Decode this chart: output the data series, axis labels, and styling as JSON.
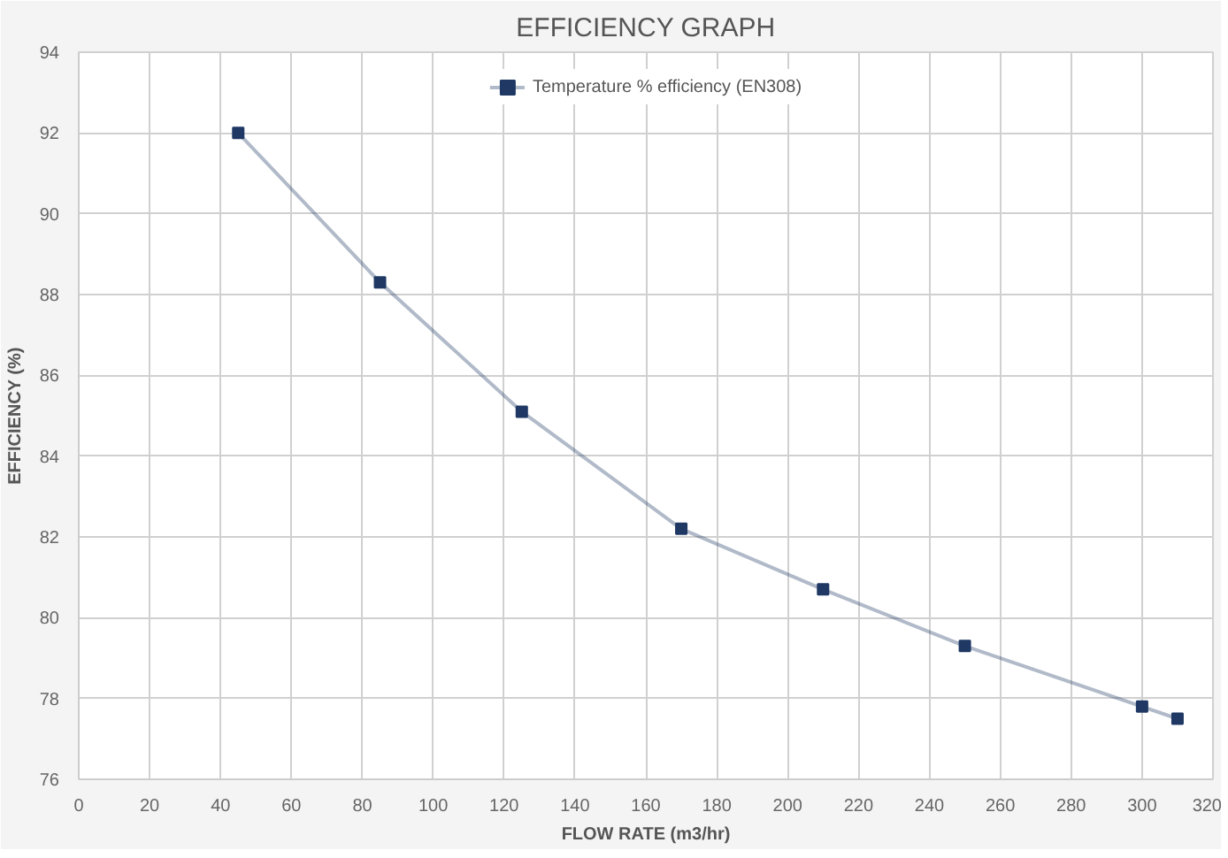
{
  "chart_data": {
    "type": "line",
    "title": "EFFICIENCY GRAPH",
    "xlabel": "FLOW RATE (m3/hr)",
    "ylabel": "EFFICIENCY (%)",
    "x": [
      45,
      85,
      125,
      170,
      210,
      250,
      300,
      310
    ],
    "series": [
      {
        "name": "Temperature % efficiency (EN308)",
        "color": "#1f3864",
        "values": [
          92,
          88.3,
          85.1,
          82.2,
          80.7,
          79.3,
          77.8,
          77.5
        ]
      }
    ],
    "xlim": [
      0,
      320
    ],
    "xticks": [
      0,
      20,
      40,
      60,
      80,
      100,
      120,
      140,
      160,
      180,
      200,
      220,
      240,
      260,
      280,
      300,
      320
    ],
    "ylim": [
      76,
      94
    ],
    "yticks": [
      76,
      78,
      80,
      82,
      84,
      86,
      88,
      90,
      92,
      94
    ],
    "grid": true,
    "legend": "top",
    "marker": "square",
    "line_style": "solid"
  }
}
